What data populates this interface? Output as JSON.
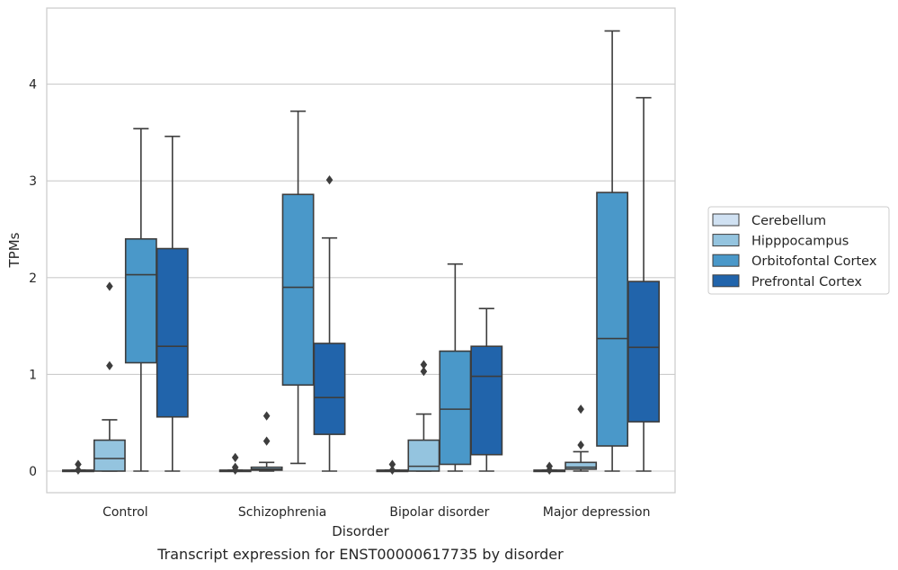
{
  "chart_data": {
    "type": "box",
    "xlabel": "Disorder",
    "ylabel": "TPMs",
    "caption": "Transcript expression for ENST00000617735 by disorder",
    "ylim": [
      -0.22,
      4.8
    ],
    "yticks": [
      0,
      1,
      2,
      3,
      4
    ],
    "ytick_labels": [
      "0",
      "1",
      "2",
      "3",
      "4"
    ],
    "grid": "horizontal",
    "legend_position": "right",
    "categories": [
      "Control",
      "Schizophrenia",
      "Bipolar disorder",
      "Major depression"
    ],
    "series": [
      {
        "name": "Cerebellum",
        "color": "#d0e1f2",
        "boxes": [
          {
            "whislo": 0,
            "q1": 0,
            "med": 0,
            "q3": 0.01,
            "whishi": 0.01,
            "fliers": [
              0.01,
              0.07
            ]
          },
          {
            "whislo": 0,
            "q1": 0,
            "med": 0,
            "q3": 0.01,
            "whishi": 0.01,
            "fliers": [
              0.01,
              0.04,
              0.14
            ]
          },
          {
            "whislo": 0,
            "q1": 0,
            "med": 0,
            "q3": 0.01,
            "whishi": 0.01,
            "fliers": [
              0.01,
              0.07
            ]
          },
          {
            "whislo": 0,
            "q1": 0,
            "med": 0,
            "q3": 0.01,
            "whishi": 0.01,
            "fliers": [
              0.01,
              0.05
            ]
          }
        ]
      },
      {
        "name": "Hipppocampus",
        "color": "#94c4df",
        "boxes": [
          {
            "whislo": 0,
            "q1": 0,
            "med": 0.13,
            "q3": 0.32,
            "whishi": 0.53,
            "fliers": [
              1.09,
              1.91
            ]
          },
          {
            "whislo": 0,
            "q1": 0.01,
            "med": 0.02,
            "q3": 0.04,
            "whishi": 0.09,
            "fliers": [
              0.31,
              0.57
            ]
          },
          {
            "whislo": 0,
            "q1": 0,
            "med": 0.05,
            "q3": 0.32,
            "whishi": 0.59,
            "fliers": [
              1.03,
              1.1
            ]
          },
          {
            "whislo": 0,
            "q1": 0.02,
            "med": 0.04,
            "q3": 0.09,
            "whishi": 0.2,
            "fliers": [
              0.27,
              0.64
            ]
          }
        ]
      },
      {
        "name": "Orbitofontal Cortex",
        "color": "#4a98c9",
        "boxes": [
          {
            "whislo": 0,
            "q1": 1.12,
            "med": 2.03,
            "q3": 2.4,
            "whishi": 3.54,
            "fliers": []
          },
          {
            "whislo": 0.08,
            "q1": 0.89,
            "med": 1.9,
            "q3": 2.86,
            "whishi": 3.72,
            "fliers": []
          },
          {
            "whislo": 0,
            "q1": 0.07,
            "med": 0.64,
            "q3": 1.24,
            "whishi": 2.14,
            "fliers": []
          },
          {
            "whislo": 0,
            "q1": 0.26,
            "med": 1.37,
            "q3": 2.88,
            "whishi": 4.55,
            "fliers": []
          }
        ]
      },
      {
        "name": "Prefrontal Cortex",
        "color": "#2164ab",
        "boxes": [
          {
            "whislo": 0,
            "q1": 0.56,
            "med": 1.29,
            "q3": 2.3,
            "whishi": 3.46,
            "fliers": []
          },
          {
            "whislo": 0,
            "q1": 0.38,
            "med": 0.76,
            "q3": 1.32,
            "whishi": 2.41,
            "fliers": [
              3.01
            ]
          },
          {
            "whislo": 0,
            "q1": 0.17,
            "med": 0.98,
            "q3": 1.29,
            "whishi": 1.68,
            "fliers": []
          },
          {
            "whislo": 0,
            "q1": 0.51,
            "med": 1.28,
            "q3": 1.96,
            "whishi": 3.86,
            "fliers": []
          }
        ]
      }
    ]
  }
}
